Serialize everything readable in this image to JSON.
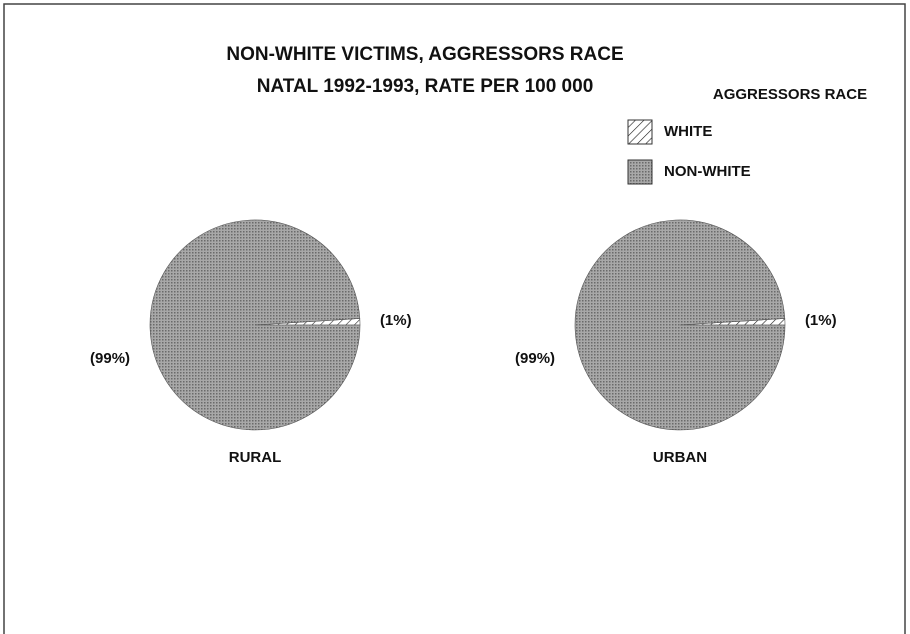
{
  "title": [
    "NON-WHITE VICTIMS, AGGRESSORS RACE",
    "NATAL 1992-1993, RATE PER 100 000"
  ],
  "legend_title": "AGGRESSORS RACE",
  "chart_data": [
    {
      "type": "pie",
      "label": "RURAL",
      "categories": [
        "WHITE",
        "NON-WHITE"
      ],
      "values": [
        1,
        99
      ],
      "value_labels": [
        "(1%)",
        "(99%)"
      ],
      "colors": [
        "#ffffff",
        "#9a9a9a"
      ]
    },
    {
      "type": "pie",
      "label": "URBAN",
      "categories": [
        "WHITE",
        "NON-WHITE"
      ],
      "values": [
        1,
        99
      ],
      "value_labels": [
        "(1%)",
        "(99%)"
      ],
      "colors": [
        "#ffffff",
        "#9a9a9a"
      ]
    }
  ]
}
